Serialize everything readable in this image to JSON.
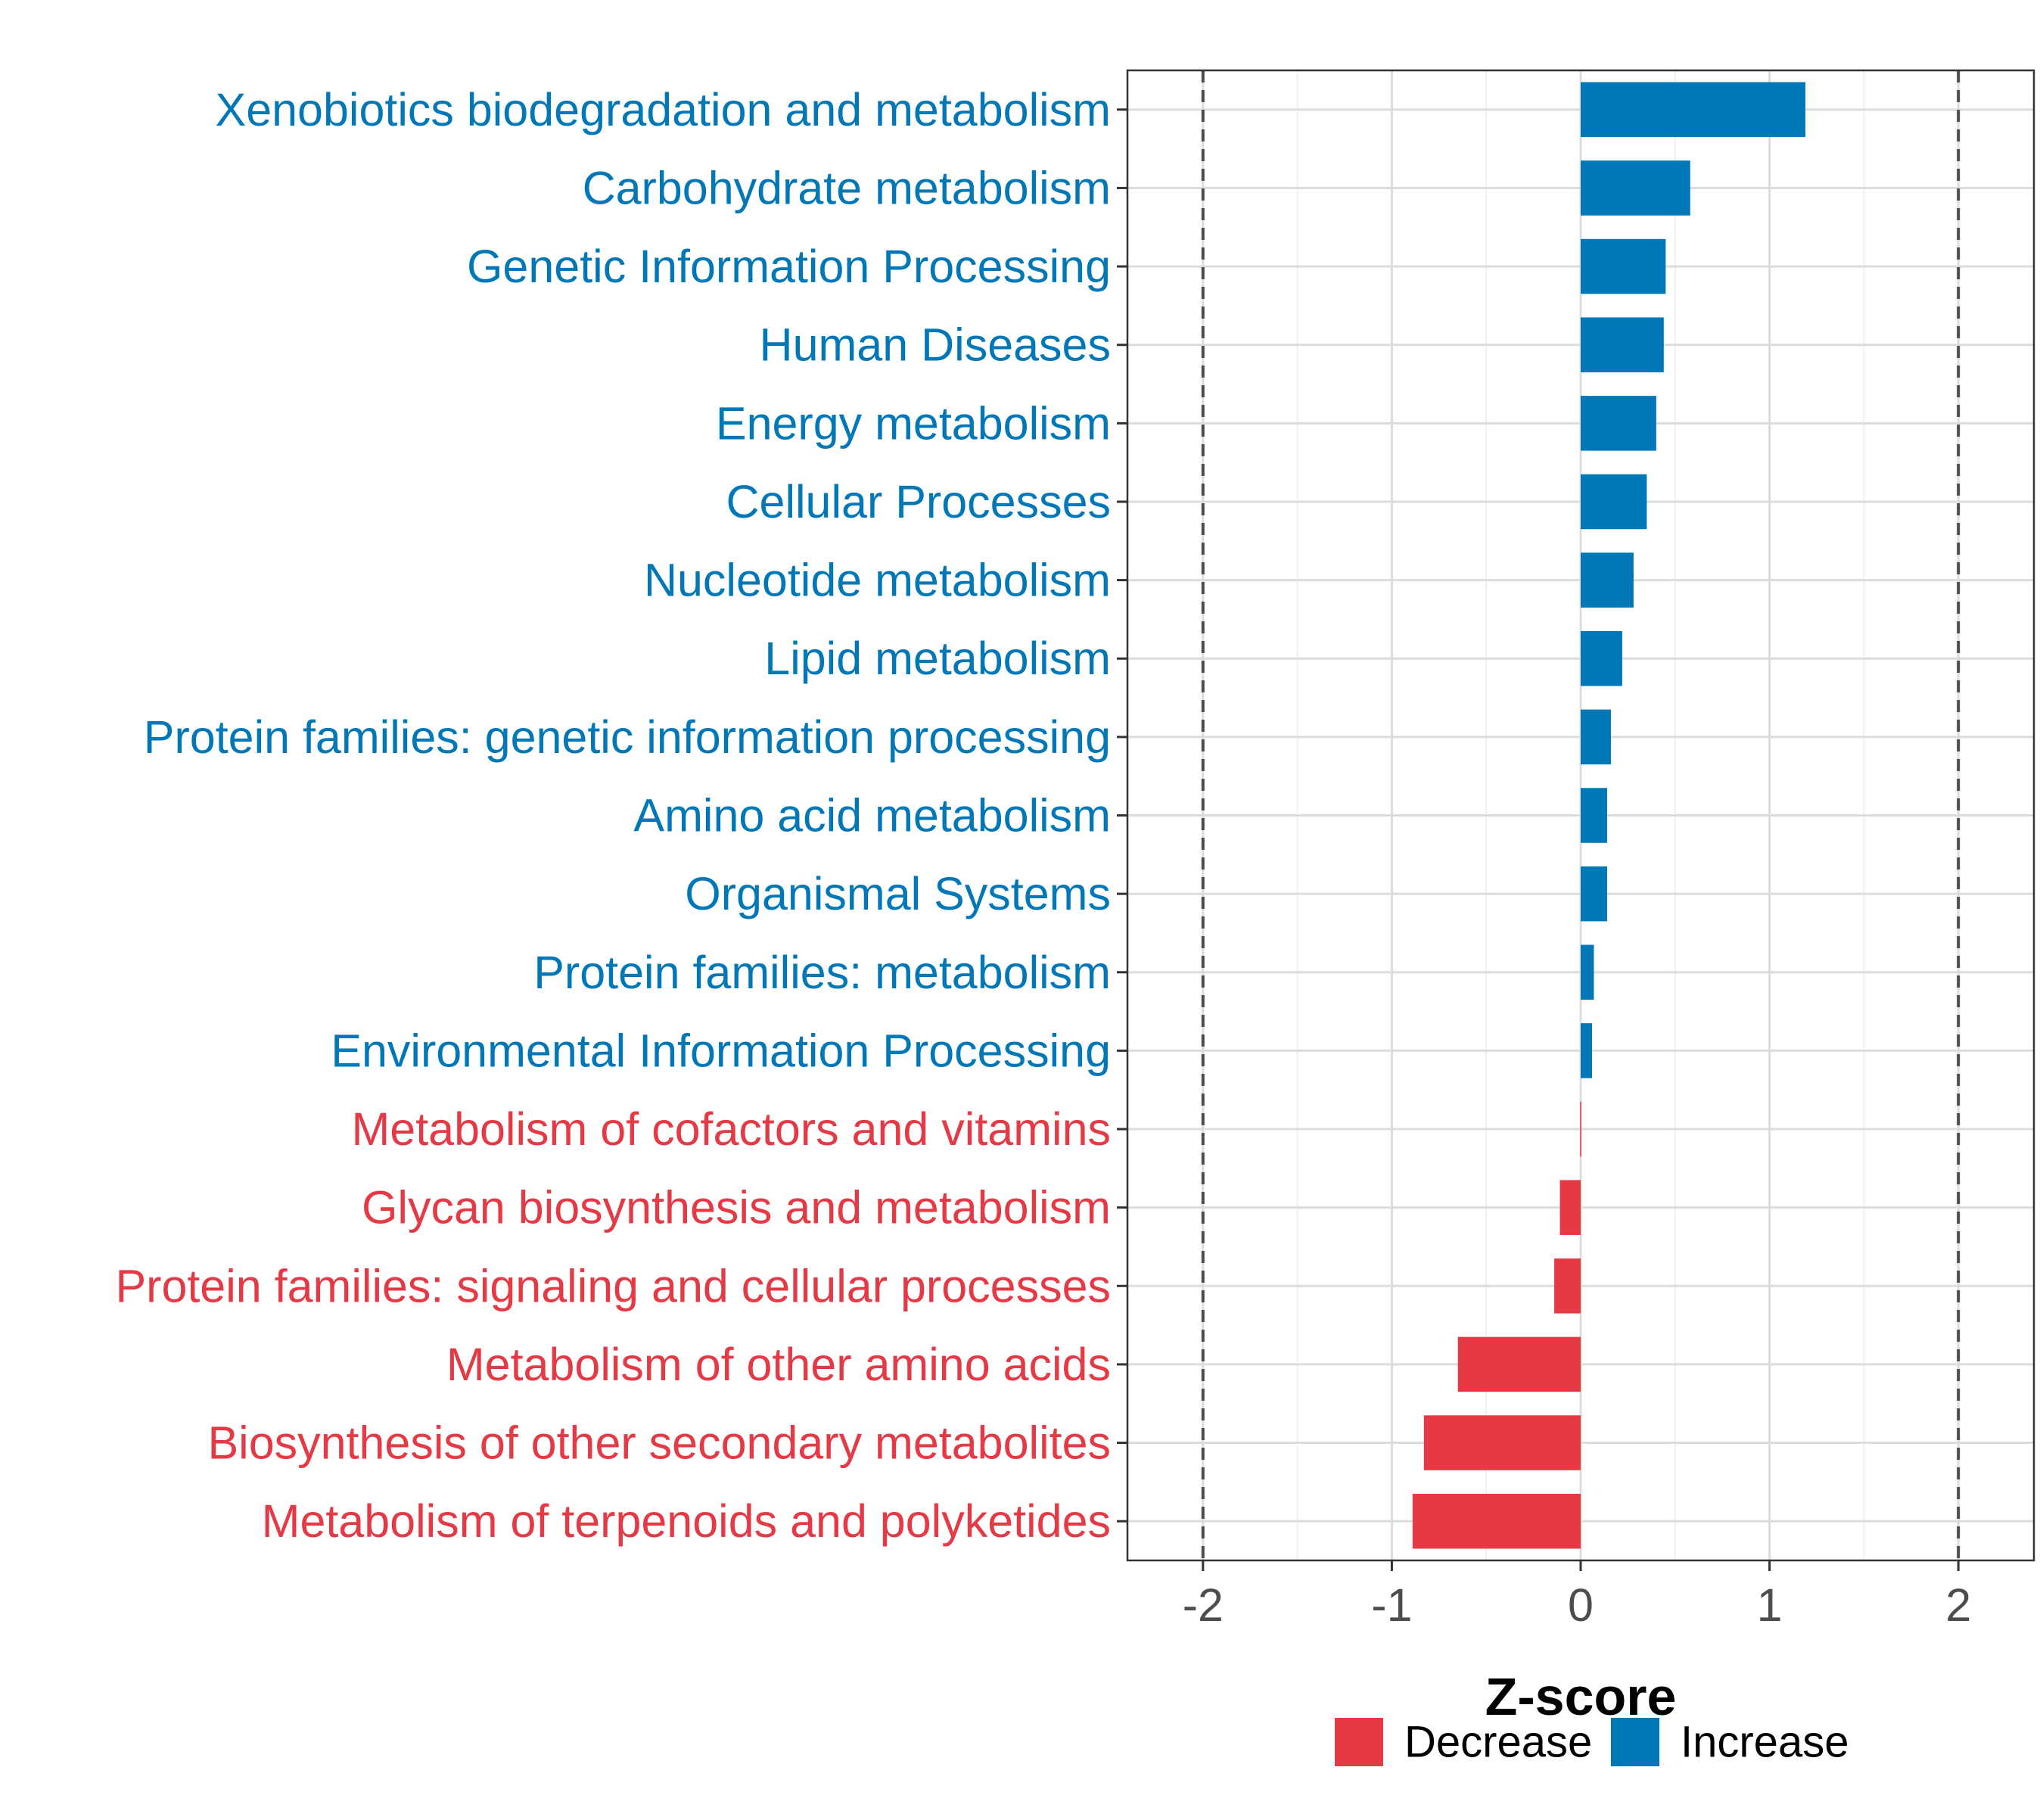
{
  "chart_data": {
    "type": "bar",
    "orientation": "horizontal",
    "categories": [
      "Xenobiotics biodegradation and metabolism",
      "Carbohydrate metabolism",
      "Genetic Information Processing",
      "Human Diseases",
      "Energy metabolism",
      "Cellular Processes",
      "Nucleotide metabolism",
      "Lipid metabolism",
      "Protein families: genetic information processing",
      "Amino acid metabolism",
      "Organismal Systems",
      "Protein families: metabolism",
      "Environmental Information Processing",
      "Metabolism of cofactors and vitamins",
      "Glycan biosynthesis and metabolism",
      "Protein families: signaling and cellular processes",
      "Metabolism of other amino acids",
      "Biosynthesis of other secondary metabolites",
      "Metabolism of terpenoids and polyketides"
    ],
    "values": [
      1.19,
      0.58,
      0.45,
      0.44,
      0.4,
      0.35,
      0.28,
      0.22,
      0.16,
      0.14,
      0.14,
      0.07,
      0.06,
      -0.003,
      -0.11,
      -0.14,
      -0.65,
      -0.83,
      -0.89
    ],
    "groups": [
      "Increase",
      "Increase",
      "Increase",
      "Increase",
      "Increase",
      "Increase",
      "Increase",
      "Increase",
      "Increase",
      "Increase",
      "Increase",
      "Increase",
      "Increase",
      "Decrease",
      "Decrease",
      "Decrease",
      "Decrease",
      "Decrease",
      "Decrease"
    ],
    "title": "",
    "xlabel": "Z-score",
    "ylabel": "",
    "xlim": [
      -2.4,
      2.4
    ],
    "xticks": [
      -2,
      -1,
      0,
      1,
      2
    ],
    "xtick_labels": [
      "-2",
      "-1",
      "0",
      "1",
      "2"
    ],
    "reference_lines": [
      -2,
      2
    ],
    "grid": true,
    "legend": {
      "position": "bottom",
      "entries": [
        {
          "label": "Decrease",
          "color": "#e63946"
        },
        {
          "label": "Increase",
          "color": "#0077b6"
        }
      ]
    },
    "colors": {
      "Decrease": "#e63946",
      "Increase": "#0077b6"
    }
  }
}
